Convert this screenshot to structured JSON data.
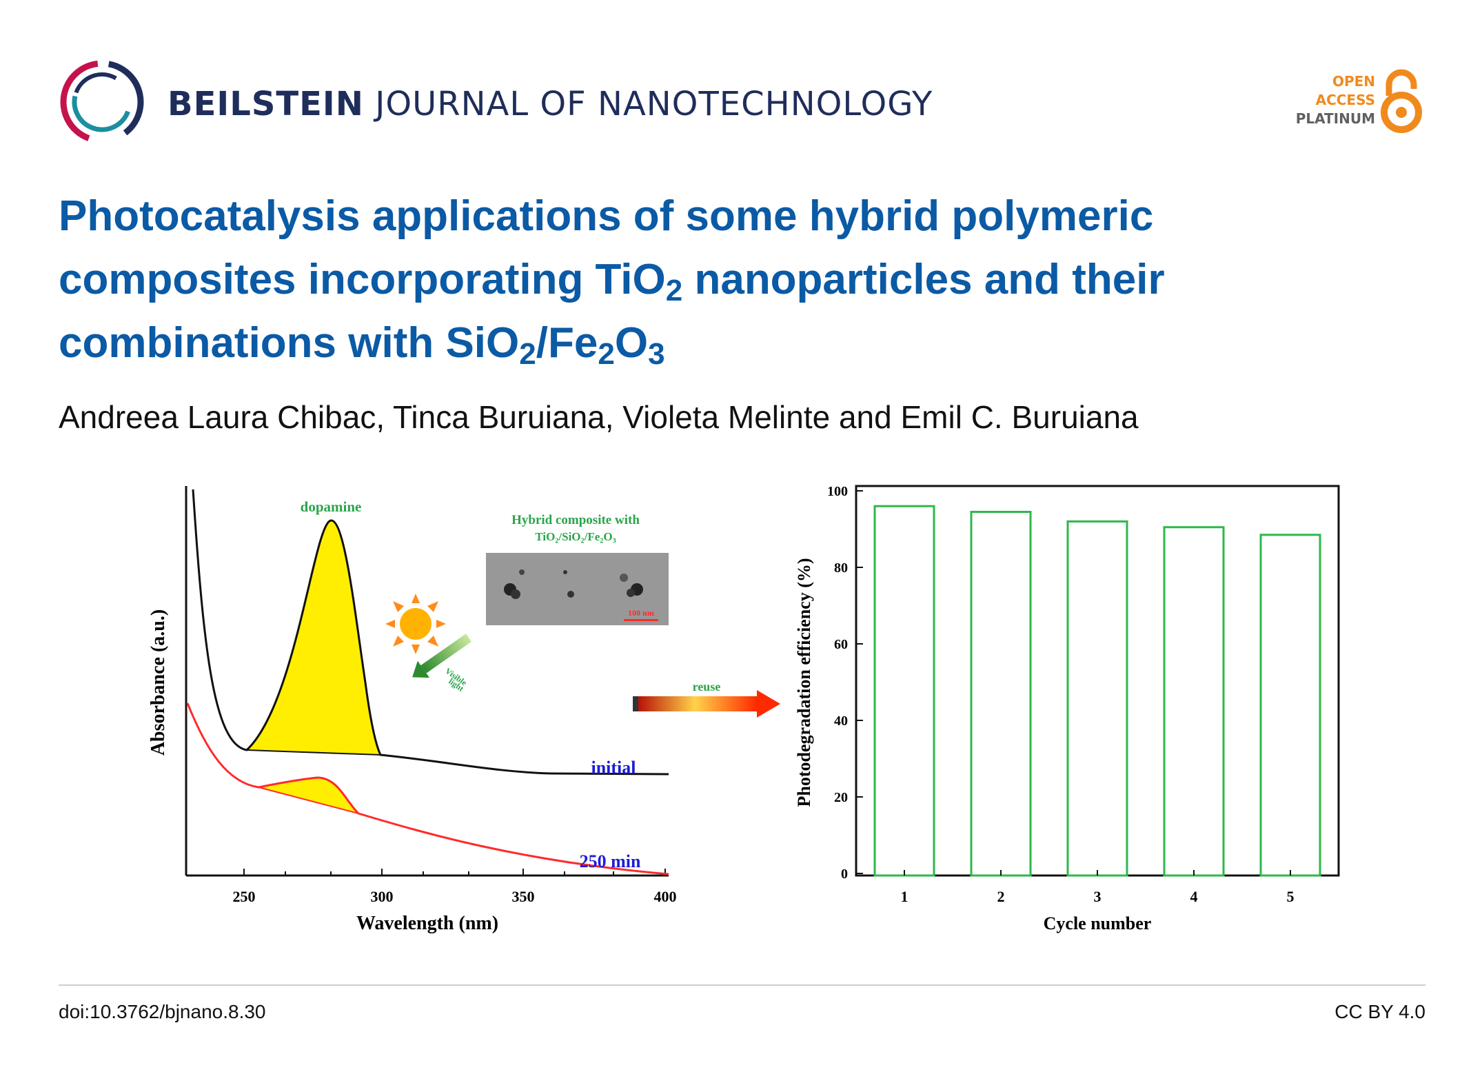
{
  "journal": {
    "name_bold": "BEILSTEIN",
    "name_rest": "JOURNAL OF NANOTECHNOLOGY"
  },
  "badge": {
    "line1": "OPEN",
    "line2": "ACCESS",
    "line3": "PLATINUM"
  },
  "article": {
    "title_part1": "Photocatalysis applications of some hybrid polymeric composites incorporating TiO",
    "title_sub1": "2",
    "title_part2": " nanoparticles and their combinations with SiO",
    "title_sub2": "2",
    "title_part3": "/Fe",
    "title_sub3": "2",
    "title_part4": "O",
    "title_sub4": "3",
    "authors": "Andreea Laura Chibac, Tinca Buruiana, Violeta Melinte and Emil C. Buruiana"
  },
  "figure": {
    "left_plot": {
      "ylabel": "Absorbance (a.u.)",
      "xlabel": "Wavelength (nm)",
      "xticks": [
        "250",
        "300",
        "350",
        "400"
      ],
      "peak_label": "dopamine",
      "curve_labels": {
        "initial": "initial",
        "final": "250 min"
      },
      "inset_caption_line1": "Hybrid composite with",
      "inset_caption_line2": "TiO₂/SiO₂/Fe₂O₃",
      "scale_label": "100 nm",
      "light_label_1": "Visible",
      "light_label_2": "light"
    },
    "arrow_label": "reuse"
  },
  "chart_data": {
    "type": "bar",
    "categories": [
      "1",
      "2",
      "3",
      "4",
      "5"
    ],
    "values": [
      96,
      94.5,
      92,
      90.5,
      88.5
    ],
    "xlabel": "Cycle number",
    "ylabel": "Photodegradation efficiency (%)",
    "ylim": [
      0,
      100
    ],
    "yticks": [
      "0",
      "20",
      "40",
      "60",
      "80",
      "100"
    ],
    "bar_color": "#2db84b"
  },
  "footer": {
    "doi": "doi:10.3762/bjnano.8.30",
    "license": "CC BY 4.0"
  },
  "colors": {
    "title": "#0b5aa5",
    "journal": "#1f2d5a",
    "oa_orange": "#f08a1d",
    "peak_fill": "#ffee00",
    "curve_red": "#ff2a2a",
    "label_blue": "#1d1dd8",
    "label_green": "#2aa54a"
  }
}
